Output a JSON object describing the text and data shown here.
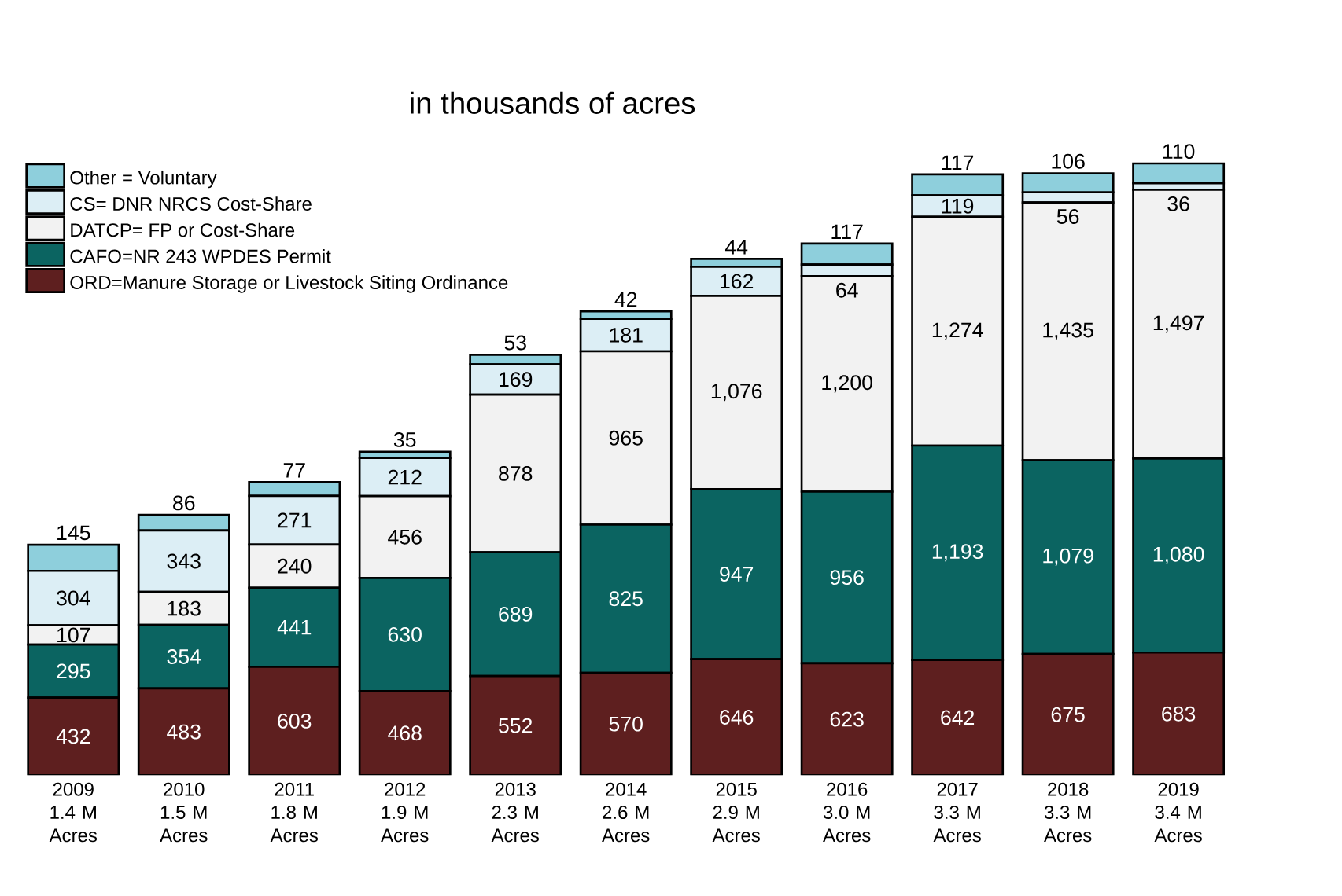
{
  "chart_data": {
    "type": "bar",
    "stacked": true,
    "title": "in thousands of acres",
    "categories": [
      "2009 1.4 M Acres",
      "2010 1.5 M Acres",
      "2011 1.8 M Acres",
      "2012 1.9 M Acres",
      "2013 2.3 M Acres",
      "2014 2.6 M Acres",
      "2015 2.9 M Acres",
      "2016 3.0 M Acres",
      "2017 3.3 M Acres",
      "2018 3.3 M Acres",
      "2019 3.4 M Acres"
    ],
    "series": [
      {
        "name": "ORD=Manure Storage or Livestock Siting Ordinance",
        "color": "#5e1f1f",
        "values": [
          432,
          483,
          603,
          468,
          552,
          570,
          646,
          623,
          642,
          675,
          683
        ],
        "value_labels": [
          "432",
          "483",
          "603",
          "468",
          "552",
          "570",
          "646",
          "623",
          "642",
          "675",
          "683"
        ]
      },
      {
        "name": "CAFO=NR 243 WPDES Permit",
        "color": "#0b6461",
        "values": [
          295,
          354,
          441,
          630,
          689,
          825,
          947,
          956,
          1193,
          1079,
          1080
        ],
        "value_labels": [
          "295",
          "354",
          "441",
          "630",
          "689",
          "825",
          "947",
          "956",
          "1,193",
          "1,079",
          "1,080"
        ]
      },
      {
        "name": "DATCP= FP or Cost-Share",
        "color": "#f2f2f2",
        "values": [
          107,
          183,
          240,
          456,
          878,
          965,
          1076,
          1200,
          1274,
          1435,
          1497
        ],
        "value_labels": [
          "107",
          "183",
          "240",
          "456",
          "878",
          "965",
          "1,076",
          "1,200",
          "1,274",
          "1,435",
          "1,497"
        ]
      },
      {
        "name": "CS= DNR NRCS Cost-Share",
        "color": "#dceef5",
        "values": [
          304,
          343,
          271,
          212,
          169,
          181,
          162,
          64,
          119,
          56,
          36
        ],
        "value_labels": [
          "304",
          "343",
          "271",
          "212",
          "169",
          "181",
          "162",
          "64",
          "119",
          "56",
          "36"
        ]
      },
      {
        "name": "Other = Voluntary",
        "color": "#8ecfdc",
        "values": [
          145,
          86,
          77,
          35,
          53,
          42,
          44,
          117,
          117,
          106,
          110
        ],
        "value_labels": [
          "145",
          "86",
          "77",
          "35",
          "53",
          "42",
          "44",
          "117",
          "117",
          "106",
          "110"
        ]
      }
    ],
    "legend": "top left"
  }
}
